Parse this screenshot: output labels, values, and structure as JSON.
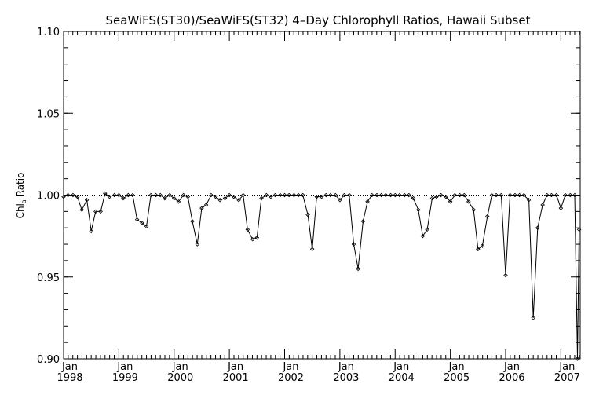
{
  "chart_data": {
    "type": "line",
    "title": "SeaWiFS(ST30)/SeaWiFS(ST32) 4–Day Chlorophyll Ratios, Hawaii Subset",
    "ylabel": "Chl_a Ratio",
    "ylabel_main": "Chl",
    "ylabel_sub": "a",
    "ylabel_rest": " Ratio",
    "xlabel": "",
    "xlim": [
      1998.0,
      2007.35
    ],
    "ylim": [
      0.9,
      1.1
    ],
    "yticks": [
      {
        "value": 0.9,
        "label": "0.90"
      },
      {
        "value": 0.95,
        "label": "0.95"
      },
      {
        "value": 1.0,
        "label": "1.00"
      },
      {
        "value": 1.05,
        "label": "1.05"
      },
      {
        "value": 1.1,
        "label": "1.10"
      }
    ],
    "xticks": [
      {
        "value": 1998,
        "month": "Jan",
        "year": "1998"
      },
      {
        "value": 1999,
        "month": "Jan",
        "year": "1999"
      },
      {
        "value": 2000,
        "month": "Jan",
        "year": "2000"
      },
      {
        "value": 2001,
        "month": "Jan",
        "year": "2001"
      },
      {
        "value": 2002,
        "month": "Jan",
        "year": "2002"
      },
      {
        "value": 2003,
        "month": "Jan",
        "year": "2003"
      },
      {
        "value": 2004,
        "month": "Jan",
        "year": "2004"
      },
      {
        "value": 2005,
        "month": "Jan",
        "year": "2005"
      },
      {
        "value": 2006,
        "month": "Jan",
        "year": "2006"
      },
      {
        "value": 2007,
        "month": "Jan",
        "year": "2007"
      }
    ],
    "reference_line": 1.0,
    "grid": false,
    "series": [
      {
        "x": [
          1998.0,
          1998.08,
          1998.17,
          1998.25,
          1998.33,
          1998.42,
          1998.5,
          1998.58,
          1998.67,
          1998.75,
          1998.83,
          1998.92,
          1999.0,
          1999.08,
          1999.17,
          1999.25,
          1999.33,
          1999.42,
          1999.5,
          1999.58,
          1999.67,
          1999.75,
          1999.83,
          1999.92,
          2000.0,
          2000.08,
          2000.17,
          2000.25,
          2000.33,
          2000.42,
          2000.5,
          2000.58,
          2000.67,
          2000.75,
          2000.83,
          2000.92,
          2001.0,
          2001.08,
          2001.17,
          2001.25,
          2001.33,
          2001.42,
          2001.5,
          2001.58,
          2001.67,
          2001.75,
          2001.83,
          2001.92,
          2002.0,
          2002.08,
          2002.17,
          2002.25,
          2002.33,
          2002.42,
          2002.5,
          2002.58,
          2002.67,
          2002.75,
          2002.83,
          2002.92,
          2003.0,
          2003.08,
          2003.17,
          2003.25,
          2003.33,
          2003.42,
          2003.5,
          2003.58,
          2003.67,
          2003.75,
          2003.83,
          2003.92,
          2004.0,
          2004.08,
          2004.17,
          2004.25,
          2004.33,
          2004.42,
          2004.5,
          2004.58,
          2004.67,
          2004.75,
          2004.83,
          2004.92,
          2005.0,
          2005.08,
          2005.17,
          2005.25,
          2005.33,
          2005.42,
          2005.5,
          2005.58,
          2005.67,
          2005.75,
          2005.83,
          2005.92,
          2006.0,
          2006.08,
          2006.17,
          2006.25,
          2006.33,
          2006.42,
          2006.5,
          2006.58,
          2006.67,
          2006.75,
          2006.83,
          2006.92,
          2007.0,
          2007.08,
          2007.17,
          2007.25,
          2007.3,
          2007.33
        ],
        "y": [
          0.999,
          1.0,
          1.0,
          0.999,
          0.991,
          0.997,
          0.978,
          0.99,
          0.99,
          1.001,
          0.999,
          1.0,
          1.0,
          0.998,
          1.0,
          1.0,
          0.985,
          0.983,
          0.981,
          1.0,
          1.0,
          1.0,
          0.998,
          1.0,
          0.998,
          0.996,
          1.0,
          0.999,
          0.984,
          0.97,
          0.992,
          0.994,
          1.0,
          0.999,
          0.997,
          0.998,
          1.0,
          0.999,
          0.997,
          1.0,
          0.979,
          0.973,
          0.974,
          0.998,
          1.0,
          0.999,
          1.0,
          1.0,
          1.0,
          1.0,
          1.0,
          1.0,
          1.0,
          0.988,
          0.967,
          0.999,
          0.999,
          1.0,
          1.0,
          1.0,
          0.997,
          1.0,
          1.0,
          0.97,
          0.955,
          0.984,
          0.996,
          1.0,
          1.0,
          1.0,
          1.0,
          1.0,
          1.0,
          1.0,
          1.0,
          1.0,
          0.998,
          0.991,
          0.975,
          0.979,
          0.998,
          0.999,
          1.0,
          0.999,
          0.996,
          1.0,
          1.0,
          1.0,
          0.996,
          0.991,
          0.967,
          0.969,
          0.987,
          1.0,
          1.0,
          1.0,
          0.951,
          1.0,
          1.0,
          1.0,
          1.0,
          0.997,
          0.925,
          0.98,
          0.994,
          1.0,
          1.0,
          1.0,
          0.992,
          1.0,
          1.0,
          1.0,
          0.9,
          0.979
        ]
      }
    ]
  }
}
